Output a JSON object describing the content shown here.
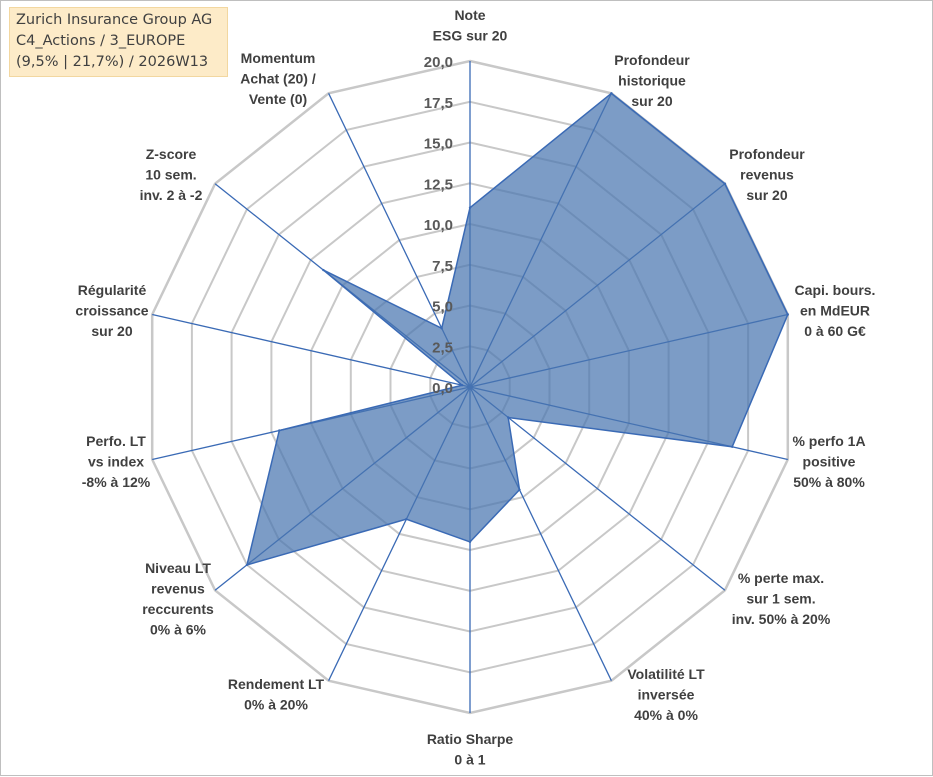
{
  "info_box": {
    "line1": "Zurich Insurance Group AG",
    "line2": "C4_Actions / 3_EUROPE",
    "line3": "(9,5% | 21,7%) / 2026W13"
  },
  "colors": {
    "fill": "#4a76b0",
    "stroke": "#3a6ab5",
    "grid": "#c8c8c8",
    "spoke": "#3a6ab5",
    "info_bg": "#fdebc8"
  },
  "chart_data": {
    "type": "radar",
    "title": "",
    "rlim": [
      0,
      20
    ],
    "ticks": [
      "0,0",
      "2,5",
      "5,0",
      "7,5",
      "10,0",
      "12,5",
      "15,0",
      "17,5",
      "20,0"
    ],
    "tick_values": [
      0,
      2.5,
      5,
      7.5,
      10,
      12.5,
      15,
      17.5,
      20
    ],
    "axes": [
      {
        "label": [
          "Note",
          "ESG sur 20"
        ],
        "value": 11
      },
      {
        "label": [
          "Profondeur",
          "historique",
          "sur 20"
        ],
        "value": 20
      },
      {
        "label": [
          "Profondeur",
          "revenus",
          "sur 20"
        ],
        "value": 20
      },
      {
        "label": [
          "Capi. bours.",
          "en MdEUR",
          "0 à 60 G€"
        ],
        "value": 20
      },
      {
        "label": [
          "% perfo 1A",
          "positive",
          "50% à 80%"
        ],
        "value": 16.5
      },
      {
        "label": [
          "% perte max.",
          "sur 1 sem.",
          "inv. 50% à 20%"
        ],
        "value": 3
      },
      {
        "label": [
          "Volatilité LT",
          "inversée",
          "40% à 0%"
        ],
        "value": 7
      },
      {
        "label": [
          "Ratio Sharpe",
          "0 à 1"
        ],
        "value": 9.5
      },
      {
        "label": [
          "Rendement LT",
          "0% à 20%"
        ],
        "value": 9
      },
      {
        "label": [
          "Niveau LT",
          "revenus",
          "reccurents",
          "0% à 6%"
        ],
        "value": 17.5
      },
      {
        "label": [
          "Perfo. LT",
          "vs index",
          "-8% à 12%"
        ],
        "value": 12
      },
      {
        "label": [
          "Régularité",
          "croissance",
          "sur 20"
        ],
        "value": 0.5
      },
      {
        "label": [
          "Z-score",
          "10 sem.",
          "inv. 2 à -2"
        ],
        "value": 11.5
      },
      {
        "label": [
          "Momentum",
          "Achat (20) /",
          "Vente (0)"
        ],
        "value": 4
      }
    ]
  }
}
